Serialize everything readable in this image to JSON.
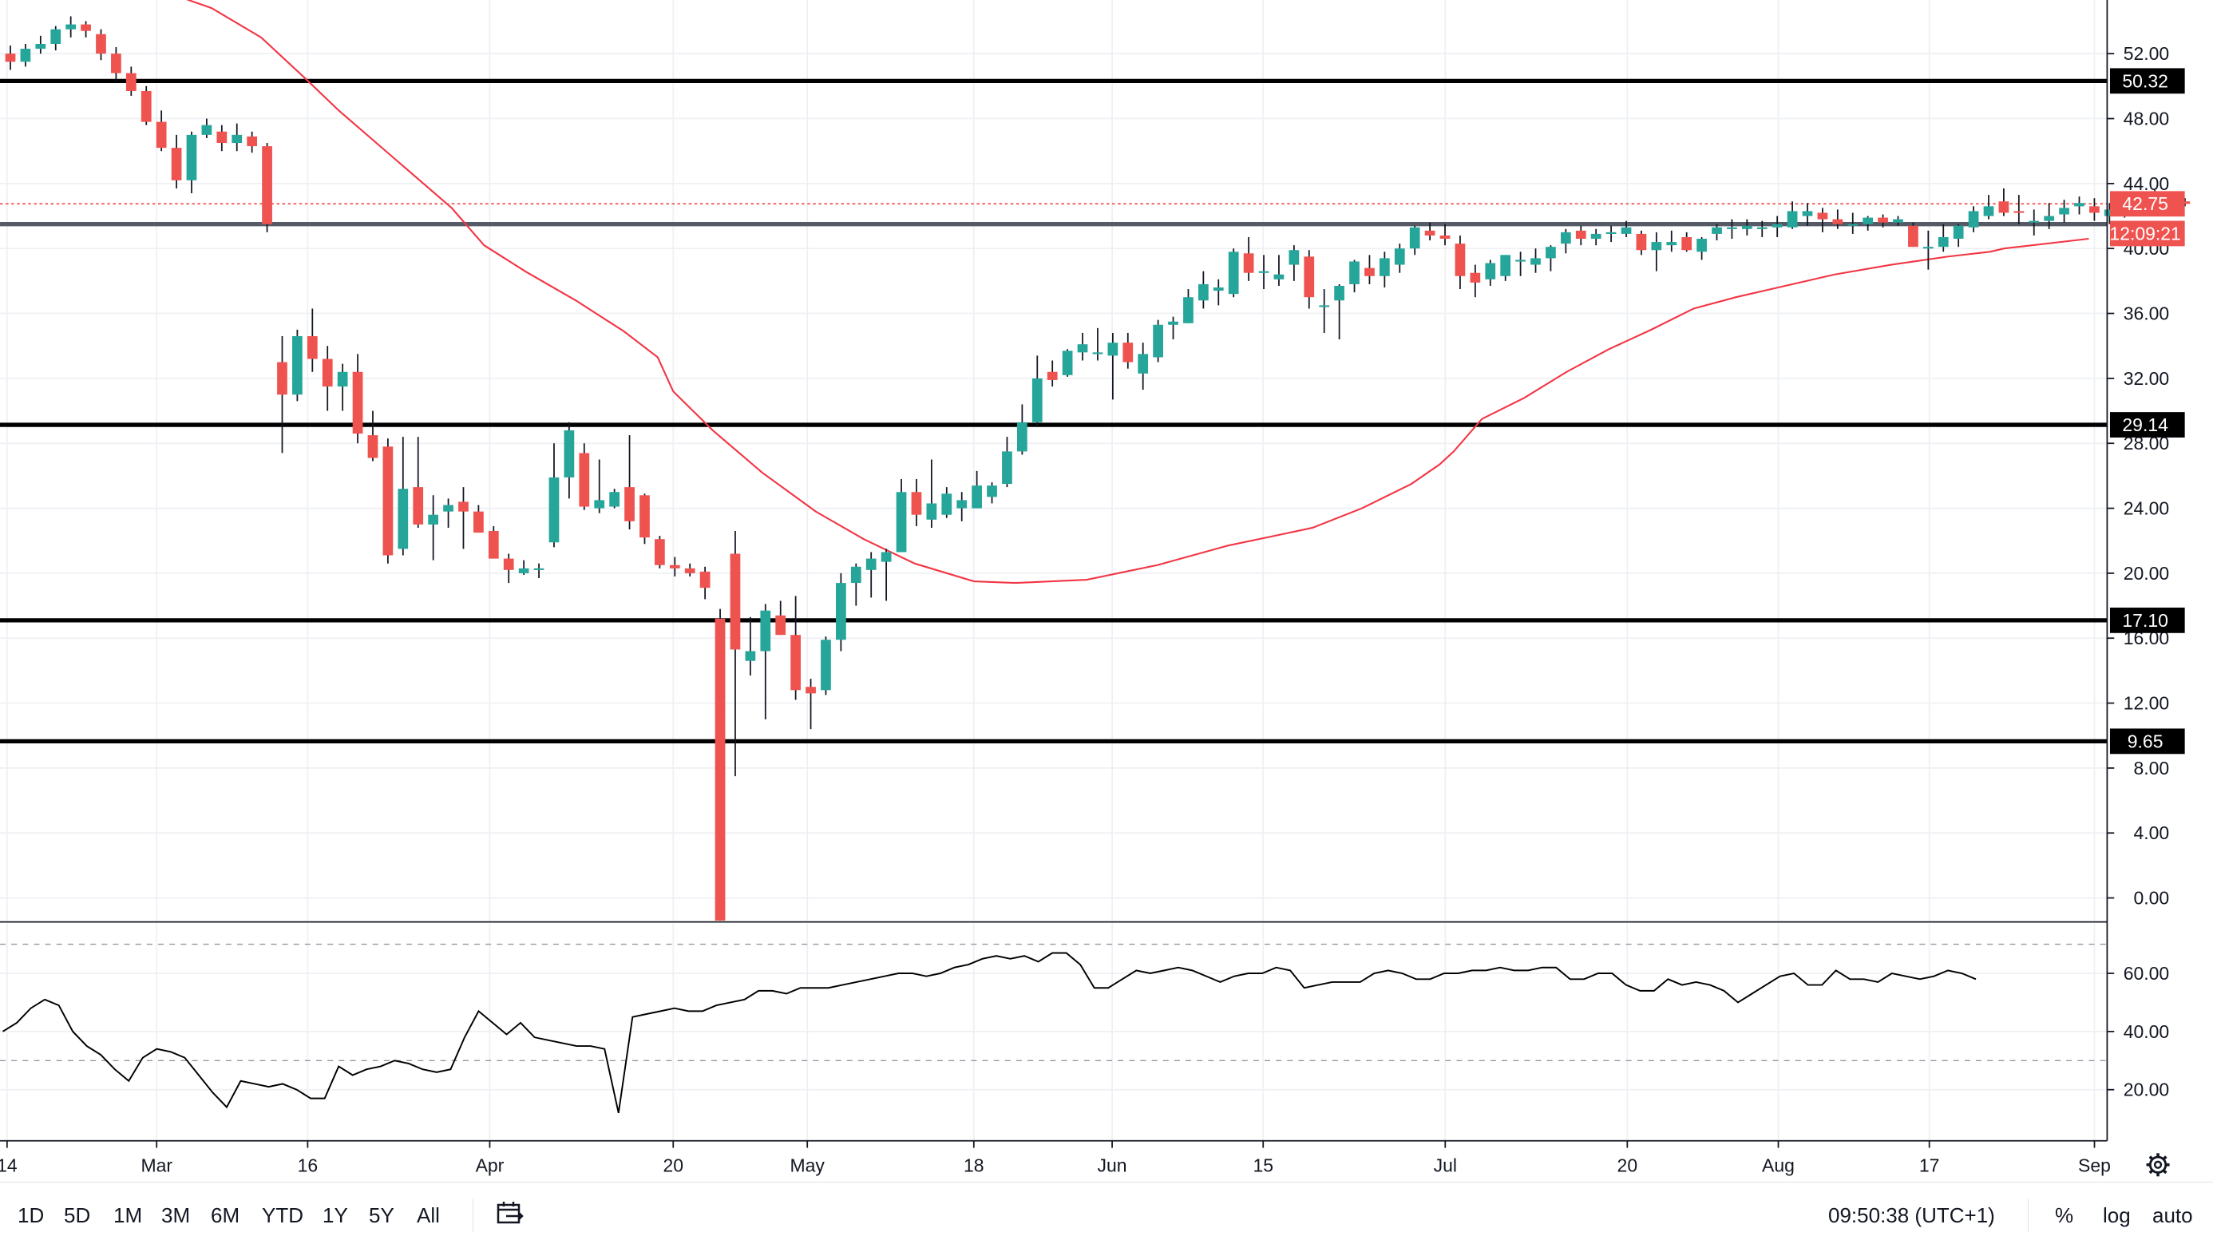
{
  "chart_data": [
    {
      "type": "candlestick",
      "title": "",
      "x_axis": {
        "tick_labels": [
          "14",
          "Mar",
          "16",
          "Apr",
          "20",
          "May",
          "18",
          "Jun",
          "15",
          "Jul",
          "20",
          "Aug",
          "17",
          "Sep"
        ]
      },
      "y_axis": {
        "side": "right",
        "ylim": [
          -1.5,
          56.5
        ],
        "ticks": [
          "52.00",
          "48.00",
          "44.00",
          "40.00",
          "36.00",
          "32.00",
          "28.00",
          "24.00",
          "20.00",
          "16.00",
          "12.00",
          "8.00",
          "4.00",
          "0.00"
        ]
      },
      "grid": true,
      "candles": [
        [
          52.0,
          52.5,
          51.0,
          51.5
        ],
        [
          51.5,
          52.6,
          51.2,
          52.3
        ],
        [
          52.3,
          53.1,
          52.0,
          52.6
        ],
        [
          52.6,
          53.7,
          52.2,
          53.5
        ],
        [
          53.5,
          54.3,
          53.0,
          53.8
        ],
        [
          53.8,
          54.0,
          53.0,
          53.4
        ],
        [
          53.2,
          53.5,
          51.6,
          52.0
        ],
        [
          52.0,
          52.4,
          50.3,
          50.8
        ],
        [
          50.8,
          51.2,
          49.4,
          49.7
        ],
        [
          49.7,
          50.0,
          47.6,
          47.8
        ],
        [
          47.8,
          48.5,
          46.0,
          46.2
        ],
        [
          46.2,
          47.0,
          43.7,
          44.2
        ],
        [
          44.2,
          47.2,
          43.4,
          47.0
        ],
        [
          47.0,
          48.0,
          46.8,
          47.6
        ],
        [
          47.2,
          47.6,
          46.0,
          46.5
        ],
        [
          46.5,
          47.7,
          46.0,
          47.0
        ],
        [
          46.9,
          47.2,
          45.9,
          46.3
        ],
        [
          46.3,
          46.5,
          41.0,
          41.5
        ],
        [
          33.0,
          34.6,
          27.4,
          31.0
        ],
        [
          31.0,
          35.0,
          30.6,
          34.6
        ],
        [
          34.6,
          36.3,
          32.4,
          33.2
        ],
        [
          33.2,
          34.0,
          30.0,
          31.5
        ],
        [
          31.5,
          32.9,
          30.0,
          32.4
        ],
        [
          32.4,
          33.5,
          28.0,
          28.6
        ],
        [
          28.5,
          30.0,
          26.9,
          27.1
        ],
        [
          27.8,
          28.3,
          20.6,
          21.1
        ],
        [
          21.5,
          28.4,
          21.1,
          25.2
        ],
        [
          25.3,
          28.4,
          22.8,
          23.0
        ],
        [
          23.0,
          24.8,
          20.8,
          23.6
        ],
        [
          23.8,
          24.6,
          22.8,
          24.2
        ],
        [
          24.4,
          25.3,
          21.5,
          23.8
        ],
        [
          23.8,
          24.2,
          22.5,
          22.5
        ],
        [
          22.6,
          22.9,
          20.9,
          20.9
        ],
        [
          20.9,
          21.2,
          19.4,
          20.2
        ],
        [
          20.0,
          20.8,
          19.9,
          20.3
        ],
        [
          20.3,
          20.6,
          19.7,
          20.3
        ],
        [
          21.9,
          28.0,
          21.6,
          25.9
        ],
        [
          25.9,
          29.3,
          24.6,
          28.8
        ],
        [
          27.4,
          28.0,
          23.9,
          24.1
        ],
        [
          24.0,
          27.0,
          23.7,
          24.5
        ],
        [
          24.1,
          25.2,
          24.0,
          25.0
        ],
        [
          25.3,
          28.5,
          22.7,
          23.2
        ],
        [
          24.8,
          24.9,
          21.8,
          22.2
        ],
        [
          22.1,
          22.3,
          20.3,
          20.5
        ],
        [
          20.5,
          21.0,
          19.8,
          20.3
        ],
        [
          20.3,
          20.6,
          19.8,
          20.0
        ],
        [
          20.1,
          20.4,
          18.4,
          19.1
        ],
        [
          17.2,
          17.8,
          -1.5,
          -1.5
        ],
        [
          21.2,
          22.6,
          7.5,
          15.3
        ],
        [
          14.6,
          17.3,
          13.7,
          15.2
        ],
        [
          15.2,
          18.1,
          11.0,
          17.7
        ],
        [
          17.4,
          18.3,
          16.2,
          16.2
        ],
        [
          16.2,
          18.6,
          12.2,
          12.8
        ],
        [
          13.0,
          13.5,
          10.4,
          12.6
        ],
        [
          12.8,
          16.1,
          12.5,
          15.9
        ],
        [
          15.9,
          20.0,
          15.2,
          19.4
        ],
        [
          19.4,
          20.6,
          18.0,
          20.4
        ],
        [
          20.2,
          21.3,
          18.5,
          20.9
        ],
        [
          20.7,
          21.5,
          18.3,
          21.3
        ],
        [
          21.3,
          25.8,
          21.3,
          25.0
        ],
        [
          25.0,
          25.8,
          22.9,
          23.6
        ],
        [
          23.3,
          27.0,
          22.8,
          24.3
        ],
        [
          23.6,
          25.3,
          23.4,
          24.9
        ],
        [
          24.0,
          25.0,
          23.2,
          24.5
        ],
        [
          24.0,
          26.3,
          24.0,
          25.4
        ],
        [
          24.7,
          25.6,
          24.3,
          25.4
        ],
        [
          25.5,
          28.4,
          25.3,
          27.5
        ],
        [
          27.5,
          30.4,
          27.3,
          29.3
        ],
        [
          29.3,
          33.4,
          29.0,
          32.0
        ],
        [
          32.4,
          33.1,
          31.5,
          31.9
        ],
        [
          32.2,
          33.8,
          32.1,
          33.7
        ],
        [
          33.6,
          34.8,
          33.1,
          34.1
        ],
        [
          33.6,
          35.1,
          33.1,
          33.6
        ],
        [
          33.4,
          34.8,
          30.7,
          34.2
        ],
        [
          34.2,
          34.8,
          32.6,
          33.0
        ],
        [
          32.3,
          34.2,
          31.3,
          33.5
        ],
        [
          33.3,
          35.6,
          33.0,
          35.3
        ],
        [
          35.3,
          35.8,
          34.4,
          35.5
        ],
        [
          35.4,
          37.5,
          35.4,
          37.0
        ],
        [
          36.8,
          38.6,
          36.3,
          37.8
        ],
        [
          37.4,
          38.1,
          36.5,
          37.6
        ],
        [
          37.2,
          40.0,
          37.0,
          39.8
        ],
        [
          39.7,
          40.7,
          38.0,
          38.5
        ],
        [
          38.5,
          39.6,
          37.5,
          38.6
        ],
        [
          38.1,
          39.6,
          37.7,
          38.4
        ],
        [
          39.0,
          40.2,
          38.0,
          39.9
        ],
        [
          39.5,
          39.9,
          36.3,
          37.0
        ],
        [
          36.5,
          37.5,
          34.8,
          36.5
        ],
        [
          36.8,
          37.8,
          34.4,
          37.7
        ],
        [
          37.8,
          39.3,
          37.3,
          39.2
        ],
        [
          38.8,
          39.6,
          37.8,
          38.3
        ],
        [
          38.3,
          39.8,
          37.6,
          39.4
        ],
        [
          39.0,
          40.3,
          38.5,
          40.0
        ],
        [
          40.0,
          41.4,
          39.6,
          41.3
        ],
        [
          41.1,
          41.6,
          40.5,
          40.8
        ],
        [
          40.8,
          41.5,
          40.2,
          40.6
        ],
        [
          40.3,
          40.8,
          37.5,
          38.3
        ],
        [
          38.5,
          39.0,
          37.0,
          37.9
        ],
        [
          38.1,
          39.3,
          37.7,
          39.1
        ],
        [
          38.3,
          39.6,
          38.0,
          39.6
        ],
        [
          39.3,
          39.8,
          38.3,
          39.3
        ],
        [
          39.0,
          40.0,
          38.5,
          39.4
        ],
        [
          39.4,
          40.2,
          38.6,
          40.1
        ],
        [
          40.3,
          41.2,
          39.7,
          41.0
        ],
        [
          41.1,
          41.4,
          40.2,
          40.6
        ],
        [
          40.6,
          41.2,
          40.2,
          40.9
        ],
        [
          40.9,
          41.4,
          40.4,
          41.0
        ],
        [
          40.9,
          41.7,
          40.7,
          41.3
        ],
        [
          40.9,
          41.1,
          39.6,
          39.9
        ],
        [
          39.9,
          41.0,
          38.6,
          40.4
        ],
        [
          40.2,
          41.1,
          39.8,
          40.4
        ],
        [
          40.7,
          41.0,
          39.8,
          39.9
        ],
        [
          39.8,
          40.7,
          39.3,
          40.6
        ],
        [
          40.9,
          41.5,
          40.5,
          41.3
        ],
        [
          41.2,
          41.8,
          40.6,
          41.3
        ],
        [
          41.2,
          41.8,
          40.8,
          41.4
        ],
        [
          41.2,
          41.7,
          40.7,
          41.3
        ],
        [
          41.3,
          42.0,
          40.7,
          41.5
        ],
        [
          41.3,
          42.9,
          41.2,
          42.3
        ],
        [
          42.0,
          42.8,
          41.4,
          42.3
        ],
        [
          42.2,
          42.5,
          41.0,
          41.8
        ],
        [
          41.8,
          42.4,
          41.2,
          41.5
        ],
        [
          41.5,
          42.2,
          40.9,
          41.5
        ],
        [
          41.5,
          42.0,
          41.1,
          41.9
        ],
        [
          41.9,
          42.1,
          41.3,
          41.6
        ],
        [
          41.6,
          42.0,
          41.4,
          41.8
        ],
        [
          41.4,
          41.6,
          40.1,
          40.1
        ],
        [
          40.0,
          41.1,
          38.7,
          40.1
        ],
        [
          40.1,
          41.5,
          39.8,
          40.7
        ],
        [
          40.6,
          41.5,
          40.1,
          41.4
        ],
        [
          41.3,
          42.6,
          41.0,
          42.3
        ],
        [
          42.0,
          43.3,
          41.8,
          42.6
        ],
        [
          42.9,
          43.7,
          42.0,
          42.2
        ],
        [
          42.3,
          43.3,
          41.5,
          42.2
        ],
        [
          41.6,
          42.4,
          40.8,
          41.7
        ],
        [
          41.7,
          42.8,
          41.2,
          42.0
        ],
        [
          42.1,
          43.0,
          41.6,
          42.5
        ],
        [
          42.6,
          43.2,
          42.1,
          42.8
        ],
        [
          42.6,
          43.1,
          41.7,
          42.2
        ],
        [
          42.0,
          42.8,
          41.5,
          42.4
        ],
        [
          42.6,
          43.2,
          41.9,
          43.0
        ],
        [
          42.7,
          43.4,
          42.4,
          43.3
        ],
        [
          43.0,
          43.6,
          42.3,
          42.9
        ],
        [
          42.9,
          43.4,
          42.4,
          43.1
        ],
        [
          42.9,
          43.1,
          42.6,
          42.75
        ]
      ],
      "candle_x_start": 2,
      "moving_average": [
        [
          111,
          56.0
        ],
        [
          150,
          54.8
        ],
        [
          185,
          53.0
        ],
        [
          216,
          50.5
        ],
        [
          240,
          48.5
        ],
        [
          280,
          45.5
        ],
        [
          320,
          42.5
        ],
        [
          343,
          40.2
        ],
        [
          372,
          38.6
        ],
        [
          408,
          36.8
        ],
        [
          442,
          34.9
        ],
        [
          466,
          33.3
        ],
        [
          477,
          31.2
        ],
        [
          505,
          28.8
        ],
        [
          540,
          26.2
        ],
        [
          578,
          23.8
        ],
        [
          612,
          22.1
        ],
        [
          648,
          20.6
        ],
        [
          690,
          19.5
        ],
        [
          720,
          19.4
        ],
        [
          770,
          19.6
        ],
        [
          820,
          20.5
        ],
        [
          870,
          21.7
        ],
        [
          903,
          22.3
        ],
        [
          930,
          22.8
        ],
        [
          965,
          24.0
        ],
        [
          1000,
          25.5
        ],
        [
          1020,
          26.7
        ],
        [
          1030,
          27.5
        ],
        [
          1050,
          29.5
        ],
        [
          1080,
          30.8
        ],
        [
          1110,
          32.4
        ],
        [
          1140,
          33.8
        ],
        [
          1170,
          35.0
        ],
        [
          1200,
          36.3
        ],
        [
          1230,
          37.0
        ],
        [
          1260,
          37.6
        ],
        [
          1300,
          38.4
        ],
        [
          1340,
          39.0
        ],
        [
          1380,
          39.5
        ],
        [
          1410,
          39.8
        ],
        [
          1420,
          40.0
        ],
        [
          1480,
          40.6
        ]
      ],
      "horizontal_levels": [
        50.32,
        41.5,
        29.14,
        17.1,
        9.65
      ],
      "labels": {
        "level_50": "50.32",
        "level_29": "29.14",
        "level_17": "17.10",
        "level_9": "9.65",
        "last_price": "42.75",
        "countdown": "12:09:21"
      },
      "last_price_value": 42.75
    },
    {
      "type": "line",
      "title": "",
      "y_axis": {
        "ticks": [
          "60.00",
          "40.00",
          "20.00"
        ],
        "ylim": [
          0,
          80
        ]
      },
      "bands": [
        70,
        30
      ],
      "series": [
        {
          "values": [
            40,
            43,
            48,
            51,
            49,
            40,
            35,
            32,
            27,
            23,
            31,
            34,
            33,
            31,
            25,
            19,
            14,
            23,
            22,
            21,
            22,
            20,
            17,
            17,
            28,
            25,
            27,
            28,
            30,
            29,
            27,
            26,
            27,
            38,
            47,
            43,
            39,
            43,
            38,
            37,
            36,
            35,
            35,
            34,
            12,
            45,
            46,
            47,
            48,
            47,
            47,
            49,
            50,
            51,
            54,
            54,
            53,
            55,
            55,
            55,
            56,
            57,
            58,
            59,
            60,
            60,
            59,
            60,
            62,
            63,
            65,
            66,
            65,
            66,
            64,
            67,
            67,
            63,
            55,
            55,
            58,
            61,
            60,
            61,
            62,
            61,
            59,
            57,
            59,
            60,
            60,
            62,
            61,
            55,
            56,
            57,
            57,
            57,
            60,
            61,
            60,
            58,
            58,
            60,
            60,
            61,
            61,
            62,
            61,
            61,
            62,
            62,
            58,
            58,
            60,
            60,
            56,
            54,
            54,
            58,
            56,
            57,
            56,
            54,
            50,
            53,
            56,
            59,
            60,
            56,
            56,
            61,
            58,
            58,
            57,
            60,
            59,
            58,
            59,
            61,
            60,
            58
          ]
        }
      ]
    }
  ],
  "time_axis": {
    "labels": [
      "14",
      "Mar",
      "16",
      "Apr",
      "20",
      "May",
      "18",
      "Jun",
      "15",
      "Jul",
      "20",
      "Aug",
      "17",
      "Sep"
    ]
  },
  "toolbar": {
    "timeframes": [
      "1D",
      "5D",
      "1M",
      "3M",
      "6M",
      "YTD",
      "1Y",
      "5Y",
      "All"
    ],
    "clock": "09:50:38 (UTC+1)",
    "percent": "%",
    "log": "log",
    "auto": "auto",
    "icons": [
      "compare-range-icon",
      "settings-gear-icon"
    ]
  },
  "colors": {
    "up": "#26a69a",
    "down": "#ef5350",
    "ma": "#f23645",
    "grid": "#eef0f4",
    "axis": "#131722"
  }
}
